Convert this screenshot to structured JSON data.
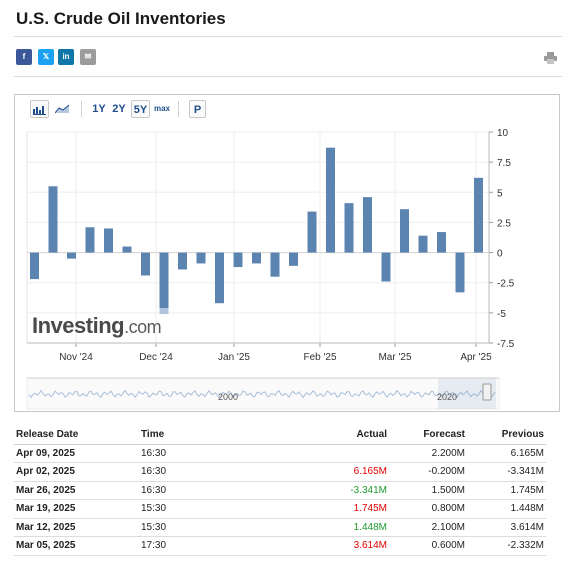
{
  "page": {
    "title": "U.S. Crude Oil Inventories"
  },
  "share": {
    "facebook": "f",
    "twitter": "𝕏",
    "linkedin": "in",
    "email": "✉"
  },
  "icons": {
    "print": "printer-icon",
    "bar_chart": "bar-chart-icon",
    "area_chart": "area-chart-icon"
  },
  "toolbar": {
    "range_1y": "1Y",
    "range_2y": "2Y",
    "range_5y": "5Y",
    "range_max": "max",
    "pin": "P"
  },
  "logo": {
    "main": "Investing",
    "suffix": ".com"
  },
  "chart_data": {
    "type": "bar",
    "values": [
      -2.2,
      5.5,
      -0.5,
      2.1,
      2.0,
      0.5,
      -1.9,
      -4.6,
      -1.4,
      -0.9,
      -4.2,
      -1.2,
      -0.9,
      -2.0,
      -1.1,
      3.4,
      8.7,
      4.1,
      4.6,
      -2.4,
      3.6,
      1.4,
      1.7,
      -3.3,
      6.2
    ],
    "forecast_overlay": [
      {
        "index": 7,
        "value": -5.1
      }
    ],
    "ylim": [
      -7.5,
      10
    ],
    "y_ticks": [
      "10",
      "7.5",
      "5",
      "2.5",
      "0",
      "-2.5",
      "-5",
      "-7.5"
    ],
    "x_ticks": [
      "Nov '24",
      "Dec '24",
      "Jan '25",
      "Feb '25",
      "Mar '25",
      "Apr '25"
    ],
    "navigator_labels": [
      "2000",
      "2020"
    ],
    "bar_color": "#5b84b1",
    "forecast_color": "#b0c4de",
    "grid": true
  },
  "table": {
    "headers": {
      "date": "Release Date",
      "time": "Time",
      "actual": "Actual",
      "forecast": "Forecast",
      "previous": "Previous"
    },
    "rows": [
      {
        "date": "Apr 09, 2025",
        "time": "16:30",
        "actual": "",
        "actual_color": "black",
        "forecast": "2.200M",
        "previous": "6.165M"
      },
      {
        "date": "Apr 02, 2025",
        "time": "16:30",
        "actual": "6.165M",
        "actual_color": "red",
        "forecast": "-0.200M",
        "previous": "-3.341M"
      },
      {
        "date": "Mar 26, 2025",
        "time": "16:30",
        "actual": "-3.341M",
        "actual_color": "green",
        "forecast": "1.500M",
        "previous": "1.745M"
      },
      {
        "date": "Mar 19, 2025",
        "time": "15:30",
        "actual": "1.745M",
        "actual_color": "red",
        "forecast": "0.800M",
        "previous": "1.448M"
      },
      {
        "date": "Mar 12, 2025",
        "time": "15:30",
        "actual": "1.448M",
        "actual_color": "green",
        "forecast": "2.100M",
        "previous": "3.614M"
      },
      {
        "date": "Mar 05, 2025",
        "time": "17:30",
        "actual": "3.614M",
        "actual_color": "red",
        "forecast": "0.600M",
        "previous": "-2.332M"
      }
    ]
  }
}
